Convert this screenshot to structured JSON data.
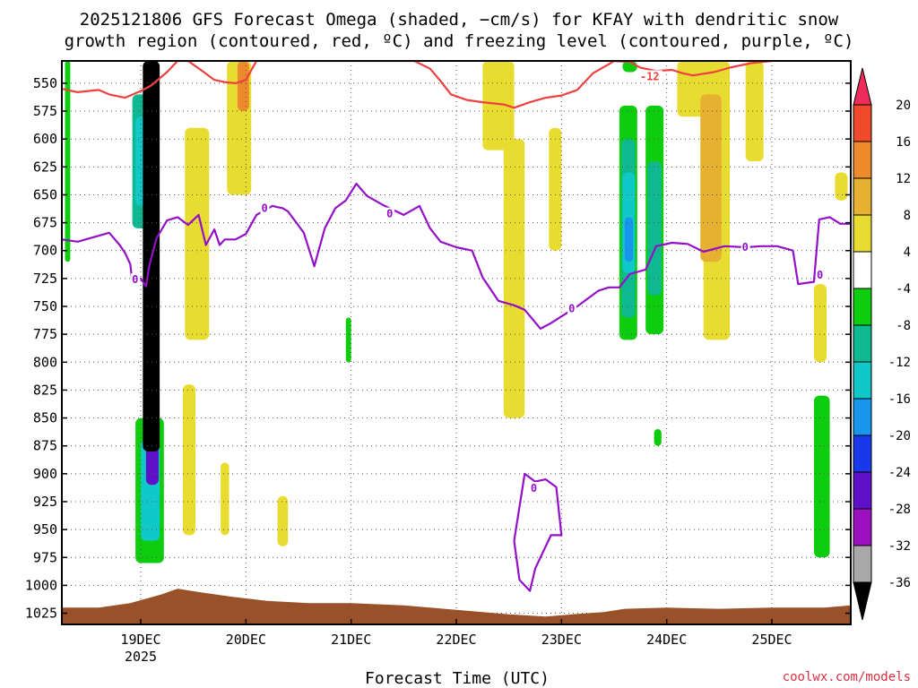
{
  "chart_data": {
    "type": "heatmap",
    "title_line1": "2025121806 GFS Forecast Omega (shaded, −cm/s) for KFAY with dendritic snow",
    "title_line2": "growth region (contoured, red, ºC) and freezing level (contoured, purple, ºC)",
    "xlabel": "Forecast Time (UTC)",
    "credit": "coolwx.com/models",
    "x_ticks": [
      {
        "label": "19DEC",
        "day": 19
      },
      {
        "label": "20DEC",
        "day": 20
      },
      {
        "label": "21DEC",
        "day": 21
      },
      {
        "label": "22DEC",
        "day": 22
      },
      {
        "label": "23DEC",
        "day": 23
      },
      {
        "label": "24DEC",
        "day": 24
      },
      {
        "label": "25DEC",
        "day": 25
      }
    ],
    "year_label": "2025",
    "x_range_days": [
      18.25,
      25.75
    ],
    "y_range_hpa": [
      530,
      1035
    ],
    "y_ticks": [
      550,
      575,
      600,
      625,
      650,
      675,
      700,
      725,
      750,
      775,
      800,
      825,
      850,
      875,
      900,
      925,
      950,
      975,
      1000,
      1025
    ],
    "grid": "dotted",
    "colorbar": {
      "labels": [
        "20",
        "16",
        "12",
        "8",
        "4",
        "-4",
        "-8",
        "-12",
        "-16",
        "-20",
        "-24",
        "-28",
        "-32",
        "-36"
      ],
      "colors": [
        "#ee2c5c",
        "#f04a2c",
        "#ec8a2c",
        "#e6b030",
        "#e8dc30",
        "#ffffff",
        "#0ecc0e",
        "#0eb890",
        "#10c8c8",
        "#1896ee",
        "#1838ea",
        "#6010c8",
        "#9c10c0",
        "#a8a8a8",
        "#000000"
      ]
    },
    "contour_labels": {
      "dgz": "-12",
      "freezing": "0"
    },
    "colors": {
      "dgz_contour": "#ee4040",
      "freezing_contour": "#9410c8",
      "terrain": "#99512a"
    },
    "dgz_contour_upper_hpa": [
      [
        18.25,
        555
      ],
      [
        18.4,
        558
      ],
      [
        18.6,
        556
      ],
      [
        18.7,
        560
      ],
      [
        18.85,
        563
      ],
      [
        19.0,
        557
      ],
      [
        19.1,
        552
      ],
      [
        19.25,
        540
      ],
      [
        19.35,
        530
      ],
      [
        19.45,
        530
      ],
      [
        19.6,
        540
      ],
      [
        19.7,
        547
      ],
      [
        19.8,
        549
      ],
      [
        19.9,
        550
      ],
      [
        20.0,
        547
      ],
      [
        20.1,
        530
      ],
      [
        21.6,
        530
      ],
      [
        21.75,
        537
      ],
      [
        21.85,
        548
      ],
      [
        21.95,
        560
      ],
      [
        22.1,
        565
      ],
      [
        22.25,
        567
      ],
      [
        22.45,
        569
      ],
      [
        22.55,
        572
      ],
      [
        22.7,
        567
      ],
      [
        22.85,
        563
      ],
      [
        23.0,
        561
      ],
      [
        23.15,
        556
      ],
      [
        23.3,
        541
      ],
      [
        23.45,
        533
      ],
      [
        23.5,
        530
      ],
      [
        23.65,
        531
      ],
      [
        23.75,
        536
      ],
      [
        23.9,
        539
      ],
      [
        24.05,
        538
      ],
      [
        24.15,
        541
      ],
      [
        24.25,
        543
      ],
      [
        24.45,
        540
      ],
      [
        24.6,
        536
      ],
      [
        24.8,
        532
      ],
      [
        25.0,
        530
      ]
    ],
    "freezing_contour_hpa": [
      [
        18.25,
        690
      ],
      [
        18.4,
        692
      ],
      [
        18.55,
        688
      ],
      [
        18.7,
        684
      ],
      [
        18.8,
        695
      ],
      [
        18.85,
        702
      ],
      [
        18.9,
        712
      ],
      [
        18.92,
        728
      ],
      [
        18.95,
        725
      ],
      [
        19.0,
        725
      ],
      [
        19.05,
        732
      ],
      [
        19.08,
        714
      ],
      [
        19.15,
        689
      ],
      [
        19.25,
        673
      ],
      [
        19.35,
        670
      ],
      [
        19.45,
        677
      ],
      [
        19.55,
        668
      ],
      [
        19.62,
        695
      ],
      [
        19.7,
        681
      ],
      [
        19.75,
        695
      ],
      [
        19.8,
        690
      ],
      [
        19.9,
        690
      ],
      [
        20.0,
        685
      ],
      [
        20.1,
        668
      ],
      [
        20.25,
        660
      ],
      [
        20.35,
        662
      ],
      [
        20.4,
        665
      ],
      [
        20.55,
        684
      ],
      [
        20.65,
        714
      ],
      [
        20.75,
        680
      ],
      [
        20.85,
        662
      ],
      [
        20.95,
        655
      ],
      [
        21.05,
        640
      ],
      [
        21.15,
        651
      ],
      [
        21.3,
        659
      ],
      [
        21.5,
        668
      ],
      [
        21.65,
        660
      ],
      [
        21.75,
        680
      ],
      [
        21.85,
        692
      ],
      [
        22.0,
        697
      ],
      [
        22.15,
        700
      ],
      [
        22.25,
        724
      ],
      [
        22.4,
        745
      ],
      [
        22.55,
        749
      ],
      [
        22.65,
        753
      ],
      [
        22.8,
        770
      ],
      [
        22.9,
        765
      ],
      [
        23.0,
        759
      ],
      [
        23.15,
        750
      ],
      [
        23.25,
        743
      ],
      [
        23.35,
        736
      ],
      [
        23.45,
        733
      ],
      [
        23.55,
        733
      ],
      [
        23.65,
        721
      ],
      [
        23.8,
        717
      ],
      [
        23.9,
        696
      ],
      [
        24.05,
        693
      ],
      [
        24.2,
        694
      ],
      [
        24.35,
        701
      ],
      [
        24.55,
        696
      ],
      [
        24.75,
        697
      ],
      [
        24.9,
        696
      ],
      [
        25.05,
        696
      ],
      [
        25.2,
        700
      ],
      [
        25.25,
        730
      ],
      [
        25.4,
        728
      ],
      [
        25.45,
        672
      ],
      [
        25.55,
        670
      ],
      [
        25.65,
        676
      ],
      [
        25.75,
        676
      ]
    ],
    "freezing_closed_contour_hpa": [
      [
        22.55,
        960
      ],
      [
        22.65,
        900
      ],
      [
        22.75,
        907
      ],
      [
        22.85,
        905
      ],
      [
        22.95,
        912
      ],
      [
        23.0,
        955
      ],
      [
        22.9,
        955
      ],
      [
        22.75,
        985
      ],
      [
        22.7,
        1005
      ],
      [
        22.6,
        995
      ],
      [
        22.55,
        960
      ]
    ],
    "terrain_top_hpa": [
      [
        18.25,
        1020
      ],
      [
        18.6,
        1020
      ],
      [
        18.9,
        1016
      ],
      [
        19.2,
        1008
      ],
      [
        19.35,
        1003
      ],
      [
        19.55,
        1006
      ],
      [
        19.85,
        1010
      ],
      [
        20.2,
        1014
      ],
      [
        20.6,
        1016
      ],
      [
        21.0,
        1016
      ],
      [
        21.5,
        1018
      ],
      [
        22.0,
        1022
      ],
      [
        22.5,
        1026
      ],
      [
        22.85,
        1028
      ],
      [
        23.1,
        1026
      ],
      [
        23.4,
        1024
      ],
      [
        23.6,
        1021
      ],
      [
        24.0,
        1020
      ],
      [
        24.5,
        1021
      ],
      [
        25.0,
        1020
      ],
      [
        25.5,
        1020
      ],
      [
        25.75,
        1018
      ]
    ],
    "omega_regions": [
      {
        "level": "4",
        "x": [
          19.42,
          19.65
        ],
        "p": [
          590,
          780
        ]
      },
      {
        "level": "4",
        "x": [
          19.82,
          20.05
        ],
        "p": [
          530,
          650
        ]
      },
      {
        "level": "4",
        "x": [
          22.25,
          22.55
        ],
        "p": [
          530,
          610
        ]
      },
      {
        "level": "4",
        "x": [
          22.45,
          22.65
        ],
        "p": [
          600,
          850
        ]
      },
      {
        "level": "4",
        "x": [
          22.88,
          23.0
        ],
        "p": [
          590,
          700
        ]
      },
      {
        "level": "4",
        "x": [
          24.1,
          24.6
        ],
        "p": [
          530,
          580
        ]
      },
      {
        "level": "4",
        "x": [
          24.35,
          24.6
        ],
        "p": [
          560,
          780
        ]
      },
      {
        "level": "4",
        "x": [
          24.75,
          24.92
        ],
        "p": [
          530,
          620
        ]
      },
      {
        "level": "8",
        "x": [
          24.32,
          24.52
        ],
        "p": [
          560,
          710
        ]
      },
      {
        "level": "12",
        "x": [
          19.92,
          20.03
        ],
        "p": [
          530,
          575
        ]
      },
      {
        "level": "4",
        "x": [
          19.4,
          19.52
        ],
        "p": [
          820,
          955
        ]
      },
      {
        "level": "4",
        "x": [
          19.76,
          19.84
        ],
        "p": [
          890,
          955
        ]
      },
      {
        "level": "4",
        "x": [
          20.3,
          20.4
        ],
        "p": [
          920,
          965
        ]
      },
      {
        "level": "4",
        "x": [
          25.4,
          25.52
        ],
        "p": [
          730,
          800
        ]
      },
      {
        "level": "4",
        "x": [
          25.6,
          25.72
        ],
        "p": [
          630,
          655
        ]
      },
      {
        "level": "-8",
        "x": [
          18.28,
          18.33
        ],
        "p": [
          530,
          710
        ]
      },
      {
        "level": "-8",
        "x": [
          20.95,
          21.0
        ],
        "p": [
          760,
          800
        ]
      },
      {
        "level": "-8",
        "x": [
          23.88,
          23.95
        ],
        "p": [
          860,
          875
        ]
      },
      {
        "level": "-8",
        "x": [
          23.58,
          23.72
        ],
        "p": [
          530,
          540
        ]
      },
      {
        "level": "-8",
        "x": [
          25.4,
          25.55
        ],
        "p": [
          830,
          975
        ]
      },
      {
        "level": "-8",
        "x": [
          23.55,
          23.72
        ],
        "p": [
          570,
          780
        ]
      },
      {
        "level": "-8",
        "x": [
          23.8,
          23.97
        ],
        "p": [
          570,
          775
        ]
      },
      {
        "level": "-12",
        "x": [
          23.57,
          23.7
        ],
        "p": [
          600,
          760
        ]
      },
      {
        "level": "-12",
        "x": [
          23.82,
          23.95
        ],
        "p": [
          620,
          740
        ]
      },
      {
        "level": "-16",
        "x": [
          23.58,
          23.7
        ],
        "p": [
          630,
          720
        ]
      },
      {
        "level": "-20",
        "x": [
          23.6,
          23.68
        ],
        "p": [
          670,
          710
        ]
      },
      {
        "level": "-12",
        "x": [
          18.92,
          19.15
        ],
        "p": [
          560,
          680
        ]
      },
      {
        "level": "-16",
        "x": [
          18.95,
          19.08
        ],
        "p": [
          580,
          660
        ]
      },
      {
        "level": "-8",
        "x": [
          18.95,
          19.22
        ],
        "p": [
          850,
          980
        ]
      },
      {
        "level": "-16",
        "x": [
          19.0,
          19.18
        ],
        "p": [
          870,
          960
        ]
      },
      {
        "level": "-28",
        "x": [
          19.05,
          19.17
        ],
        "p": [
          860,
          910
        ]
      },
      {
        "level": "-36",
        "x": [
          19.02,
          19.18
        ],
        "p": [
          530,
          880
        ]
      }
    ]
  }
}
